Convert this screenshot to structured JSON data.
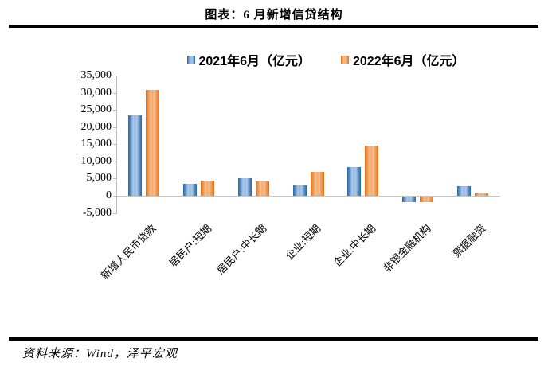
{
  "title": "图表：6 月新增信贷结构",
  "source": "资料来源：Wind，泽平宏观",
  "chart_data": {
    "type": "bar",
    "title": "图表：6 月新增信贷结构",
    "unit": "亿元",
    "categories": [
      "新增人民币贷款",
      "居民户:短期",
      "居民户:中长期",
      "企业:短期",
      "企业:中长期",
      "非银金融机构",
      "票据融资"
    ],
    "series": [
      {
        "name": "2021年6月（亿元）",
        "color": "#2E75B6",
        "color_dark": "#2563A8",
        "color_mid": "#8FB4DC",
        "color_light": "#AECBEA",
        "values": [
          23300,
          3500,
          5200,
          3100,
          8400,
          -1600,
          2700
        ]
      },
      {
        "name": "2022年6月（亿元）",
        "color": "#ED7D31",
        "color_dark": "#DE6E15",
        "color_mid": "#F4A868",
        "color_light": "#F9C191",
        "values": [
          30800,
          4300,
          4200,
          6900,
          14500,
          -1700,
          800
        ]
      }
    ],
    "ylim": [
      -5000,
      35000
    ],
    "ytick_step": 5000,
    "ytick_labels": [
      "35,000",
      "30,000",
      "25,000",
      "20,000",
      "15,000",
      "10,000",
      "5,000",
      "0",
      "-5,000"
    ],
    "grid": false,
    "legend_position": "top"
  }
}
